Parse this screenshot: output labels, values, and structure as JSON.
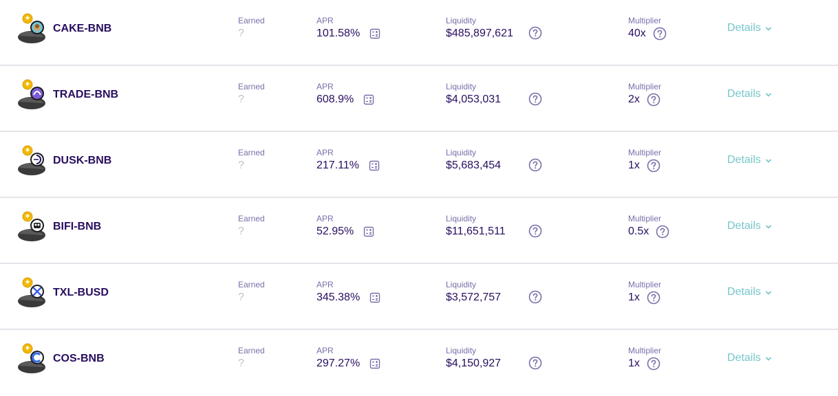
{
  "colors": {
    "text_primary": "#280d5f",
    "text_secondary": "#7a6eaa",
    "accent": "#76c6ca",
    "disabled": "#bdc2c4",
    "divider": "#e7e3eb"
  },
  "labels": {
    "earned": "Earned",
    "apr": "APR",
    "liquidity": "Liquidity",
    "multiplier": "Multiplier",
    "details": "Details"
  },
  "farms": [
    {
      "name": "CAKE-BNB",
      "earned": "?",
      "apr": "101.58%",
      "liquidity": "$485,897,621",
      "multiplier": "40x",
      "token_icon": "cake-token-icon",
      "quote_icon": "bnb-token-icon"
    },
    {
      "name": "TRADE-BNB",
      "earned": "?",
      "apr": "608.9%",
      "liquidity": "$4,053,031",
      "multiplier": "2x",
      "token_icon": "trade-token-icon",
      "quote_icon": "bnb-token-icon"
    },
    {
      "name": "DUSK-BNB",
      "earned": "?",
      "apr": "217.11%",
      "liquidity": "$5,683,454",
      "multiplier": "1x",
      "token_icon": "dusk-token-icon",
      "quote_icon": "bnb-token-icon"
    },
    {
      "name": "BIFI-BNB",
      "earned": "?",
      "apr": "52.95%",
      "liquidity": "$11,651,511",
      "multiplier": "0.5x",
      "token_icon": "bifi-token-icon",
      "quote_icon": "bnb-token-icon"
    },
    {
      "name": "TXL-BUSD",
      "earned": "?",
      "apr": "345.38%",
      "liquidity": "$3,572,757",
      "multiplier": "1x",
      "token_icon": "txl-token-icon",
      "quote_icon": "busd-token-icon"
    },
    {
      "name": "COS-BNB",
      "earned": "?",
      "apr": "297.27%",
      "liquidity": "$4,150,927",
      "multiplier": "1x",
      "token_icon": "cos-token-icon",
      "quote_icon": "bnb-token-icon"
    }
  ]
}
